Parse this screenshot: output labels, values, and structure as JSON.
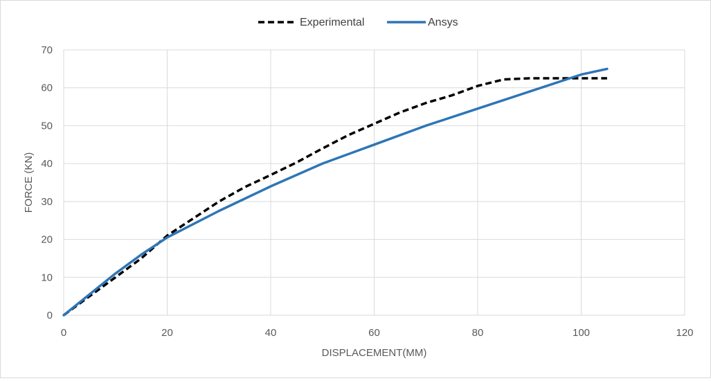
{
  "chart_data": {
    "type": "line",
    "xlabel": "DISPLACEMENT(MM)",
    "ylabel": "FORCE (KN)",
    "xlim": [
      0,
      120
    ],
    "ylim": [
      0,
      70
    ],
    "xticks": [
      0,
      20,
      40,
      60,
      80,
      100,
      120
    ],
    "yticks": [
      0,
      10,
      20,
      30,
      40,
      50,
      60,
      70
    ],
    "grid": true,
    "legend_position": "top",
    "series": [
      {
        "name": "Experimental",
        "style": "dashed",
        "color": "#000000",
        "x": [
          0,
          5,
          10,
          15,
          20,
          25,
          30,
          35,
          40,
          45,
          50,
          55,
          60,
          65,
          70,
          75,
          80,
          85,
          90,
          95,
          100,
          105
        ],
        "y": [
          0,
          5,
          10,
          15,
          21,
          25.5,
          30,
          33.8,
          37,
          40.3,
          44,
          47.5,
          50.5,
          53.5,
          56,
          58,
          60.5,
          62.2,
          62.5,
          62.5,
          62.5,
          62.5
        ]
      },
      {
        "name": "Ansys",
        "style": "solid",
        "color": "#2e75b6",
        "x": [
          0,
          5,
          10,
          15,
          20,
          30,
          40,
          50,
          60,
          70,
          80,
          90,
          100,
          105
        ],
        "y": [
          0,
          5.5,
          11,
          16,
          20.5,
          27.5,
          34,
          40,
          45,
          50,
          54.5,
          59,
          63.5,
          65
        ]
      }
    ]
  }
}
